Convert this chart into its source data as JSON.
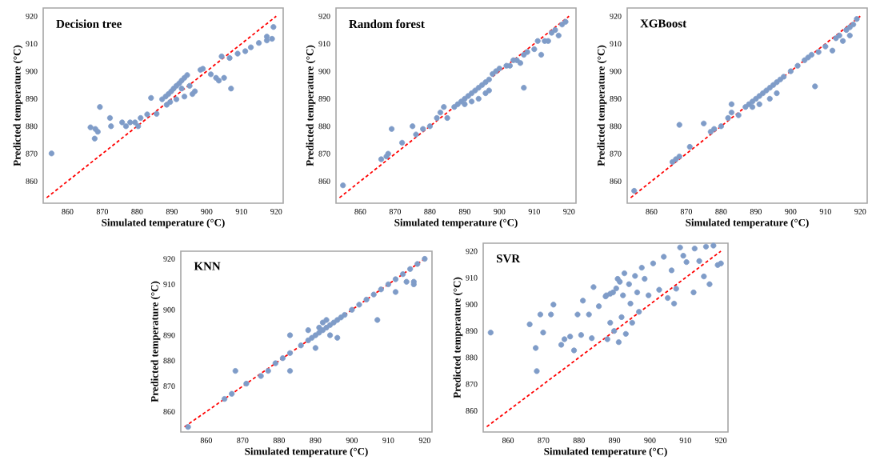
{
  "chart_data": [
    {
      "type": "scatter",
      "title": "Decision tree",
      "xlabel": "Simulated temperature (°C)",
      "ylabel": "Predicted temperature (°C)",
      "xlim": [
        853,
        922
      ],
      "ylim": [
        852,
        923
      ],
      "xticks": [
        860,
        870,
        880,
        890,
        900,
        910,
        920
      ],
      "yticks": [
        860,
        870,
        880,
        890,
        900,
        910,
        920
      ],
      "series": [
        {
          "color": "#7f9cc8",
          "marker": "circle",
          "x": [
            855.4,
            866.6,
            868,
            868.7,
            867.8,
            869.3,
            872.2,
            872.5,
            875.7,
            876.8,
            878,
            879.4,
            880.3,
            881,
            882.9,
            884,
            885.6,
            887.2,
            888.2,
            889,
            889.8,
            890.5,
            891.3,
            892.1,
            892.8,
            893.6,
            894.4,
            889.5,
            891.3,
            893.6,
            895.9,
            896.6,
            888.5,
            892.8,
            895.1,
            898.2,
            898.9,
            901.2,
            902.7,
            903.5,
            905,
            907,
            904.3,
            906.6,
            908.9,
            911.1,
            912.7,
            915,
            917.3,
            918.8,
            917.3,
            919.2
          ],
          "values": [
            870.1,
            879.6,
            879,
            878,
            875.5,
            887,
            883,
            880,
            881.4,
            880,
            881.4,
            881.4,
            880,
            883,
            884.3,
            890.3,
            884.5,
            889.8,
            890.8,
            891.7,
            892.7,
            893.7,
            894.7,
            895.6,
            896.6,
            897.6,
            898.6,
            888.8,
            889.8,
            890.8,
            891.7,
            892.7,
            887.8,
            893.7,
            894.7,
            900.5,
            900.9,
            898.9,
            897.6,
            896.6,
            897.6,
            893.7,
            905.4,
            904.8,
            906.4,
            907.3,
            908.7,
            910.3,
            911.2,
            911.8,
            912.6,
            916.1
          ]
        },
        {
          "type": "line",
          "color": "#ff0000",
          "marker": "none",
          "line_style": "dashed",
          "x": [
            854,
            920
          ],
          "values": [
            854,
            920
          ]
        }
      ]
    },
    {
      "type": "scatter",
      "title": "Random forest",
      "xlabel": "Simulated temperature (°C)",
      "ylabel": "Predicted temperature (°C)",
      "xlim": [
        853,
        922
      ],
      "ylim": [
        852,
        923
      ],
      "xticks": [
        860,
        870,
        880,
        890,
        900,
        910,
        920
      ],
      "yticks": [
        860,
        870,
        880,
        890,
        900,
        910,
        920
      ],
      "series": [
        {
          "color": "#7f9cc8",
          "marker": "circle",
          "x": [
            855,
            866,
            867.5,
            868,
            869,
            871.5,
            872,
            875,
            876,
            878,
            880,
            882,
            883,
            884,
            885,
            887,
            888,
            889,
            890,
            891,
            892,
            893,
            894,
            895,
            896,
            897,
            898,
            890,
            892,
            894,
            896,
            897,
            899,
            900,
            902,
            903,
            904,
            905,
            906,
            907,
            907,
            908,
            910,
            911,
            912,
            913,
            914,
            915,
            916,
            917,
            918,
            919
          ],
          "values": [
            858.5,
            868,
            869,
            870,
            879,
            null,
            874,
            880,
            877,
            879,
            880,
            883,
            885,
            887,
            883,
            887,
            888,
            889,
            890,
            891,
            892,
            893,
            894,
            895,
            896,
            897,
            899,
            888,
            889,
            890,
            892,
            893,
            900,
            901,
            902,
            902,
            904,
            904,
            903,
            906,
            894,
            907,
            908,
            911,
            906,
            911,
            911,
            914,
            915,
            913,
            917,
            918
          ]
        },
        {
          "type": "line",
          "color": "#ff0000",
          "marker": "none",
          "line_style": "dashed",
          "x": [
            854,
            920
          ],
          "values": [
            854,
            920
          ]
        }
      ]
    },
    {
      "type": "scatter",
      "title": "XGBoost",
      "xlabel": "Simulated temperature (°C)",
      "ylabel": "Predicted temperature (°C)",
      "xlim": [
        853,
        922
      ],
      "ylim": [
        852,
        923
      ],
      "xticks": [
        860,
        870,
        880,
        890,
        900,
        910,
        920
      ],
      "yticks": [
        860,
        870,
        880,
        890,
        900,
        910,
        920
      ],
      "series": [
        {
          "color": "#7f9cc8",
          "marker": "circle",
          "x": [
            855,
            866,
            867,
            868,
            868,
            871,
            875,
            877,
            878,
            880,
            882,
            883,
            883,
            885,
            887,
            888,
            889,
            890,
            891,
            892,
            893,
            894,
            895,
            896,
            897,
            889,
            891,
            894,
            896,
            898,
            900,
            902,
            904,
            905,
            906,
            907,
            908,
            910,
            912,
            913,
            914,
            915,
            916,
            917,
            917,
            918,
            919
          ],
          "values": [
            856.5,
            867,
            868,
            869,
            880.5,
            872.5,
            881,
            878,
            879,
            880,
            883,
            888,
            885,
            884,
            887,
            888,
            889,
            890,
            891,
            892,
            893,
            894,
            895,
            896,
            897,
            887,
            888,
            890,
            892,
            898,
            900,
            902,
            904,
            905,
            906,
            894.5,
            907,
            909,
            907.5,
            912,
            913,
            911,
            915,
            916,
            913,
            917,
            919
          ]
        },
        {
          "type": "line",
          "color": "#ff0000",
          "marker": "none",
          "line_style": "dashed",
          "x": [
            854,
            920
          ],
          "values": [
            854,
            920
          ]
        }
      ]
    },
    {
      "type": "scatter",
      "title": "KNN",
      "xlabel": "Simulated temperature (°C)",
      "ylabel": "Predicted temperature (°C)",
      "xlim": [
        853,
        922
      ],
      "ylim": [
        852,
        923
      ],
      "xticks": [
        860,
        870,
        880,
        890,
        900,
        910,
        920
      ],
      "yticks": [
        860,
        870,
        880,
        890,
        900,
        910,
        920
      ],
      "series": [
        {
          "color": "#7f9cc8",
          "marker": "circle",
          "x": [
            855,
            865,
            867,
            868,
            871,
            875,
            877,
            879,
            881,
            883,
            883,
            883,
            886,
            888,
            888,
            889,
            890,
            890,
            891,
            891,
            892,
            892,
            893,
            893,
            894,
            894,
            895,
            896,
            896,
            897,
            898,
            900,
            902,
            904,
            906,
            907,
            908,
            910,
            912,
            912,
            914,
            915,
            916,
            917,
            917,
            918,
            920
          ],
          "values": [
            854,
            865,
            867,
            876,
            871,
            874,
            876,
            879,
            881,
            883,
            890,
            876,
            886,
            892,
            888,
            889,
            885,
            890,
            891,
            893,
            895,
            892,
            896,
            893,
            890,
            894,
            895,
            889,
            896,
            897,
            898,
            900,
            902,
            904,
            906,
            896,
            908,
            910,
            907,
            912,
            914,
            911,
            916,
            911,
            910,
            918,
            920
          ]
        },
        {
          "type": "line",
          "color": "#ff0000",
          "marker": "none",
          "line_style": "dashed",
          "x": [
            854,
            920
          ],
          "values": [
            854,
            920
          ]
        }
      ]
    },
    {
      "type": "scatter",
      "title": "SVR",
      "xlabel": "Simulated temperature (°C)",
      "ylabel": "Predicted temperature (°C)",
      "xlim": [
        853,
        922
      ],
      "ylim": [
        852,
        923
      ],
      "xticks": [
        860,
        870,
        880,
        890,
        900,
        910,
        920
      ],
      "yticks": [
        860,
        870,
        880,
        890,
        900,
        910,
        920
      ],
      "series": [
        {
          "color": "#7f9cc8",
          "marker": "circle",
          "x": [
            855.1,
            866.1,
            867.8,
            868.1,
            869.1,
            869.9,
            872.1,
            872.8,
            875,
            875.9,
            877.5,
            878.6,
            879.6,
            880.6,
            881.1,
            882.8,
            884.1,
            883.6,
            885.6,
            887.7,
            888,
            888.8,
            889.6,
            889.9,
            890.9,
            891.2,
            892,
            892.4,
            892.8,
            893.2,
            894.1,
            894.5,
            895,
            895.8,
            896.4,
            896.9,
            897.7,
            898.5,
            899.6,
            900.9,
            902.6,
            903.9,
            905,
            906.1,
            906.8,
            907.4,
            908.5,
            909.4,
            910.3,
            912.3,
            912.6,
            913.9,
            915.2,
            915.8,
            916.8,
            917.9,
            919.1,
            920,
            887.5,
            888.8,
            890.5,
            891.5
          ],
          "values": [
            889.4,
            892.5,
            883.6,
            874.9,
            896.2,
            889.4,
            896.2,
            899.9,
            884.8,
            886.9,
            887.9,
            882.7,
            896.2,
            888.5,
            901.4,
            896.2,
            906.5,
            887.3,
            899.3,
            903.4,
            886.9,
            893.1,
            904.5,
            890,
            909.6,
            885.8,
            895.2,
            903.4,
            911.7,
            888.9,
            907.6,
            900.3,
            893.1,
            910.7,
            904.5,
            897.2,
            913.8,
            909.6,
            903.4,
            915.4,
            905.5,
            917.9,
            902.4,
            912.8,
            900.3,
            905.9,
            921.4,
            918.3,
            915.9,
            904.5,
            921,
            916.3,
            910.5,
            921.7,
            907.6,
            922.1,
            914.8,
            915.4,
            903,
            904,
            906,
            908.5
          ]
        },
        {
          "type": "line",
          "color": "#ff0000",
          "marker": "none",
          "line_style": "dashed",
          "x": [
            854,
            920
          ],
          "values": [
            854,
            920
          ]
        }
      ]
    }
  ]
}
